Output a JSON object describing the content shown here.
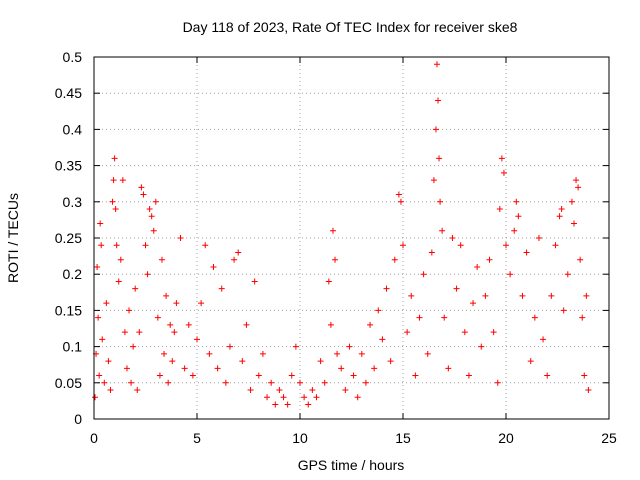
{
  "chart_data": {
    "type": "scatter",
    "title": "Day 118 of 2023, Rate Of TEC Index for receiver ske8",
    "xlabel": "GPS time / hours",
    "ylabel": "ROTI / TECUs",
    "xlim": [
      0,
      25
    ],
    "ylim": [
      0,
      0.5
    ],
    "x_ticks": [
      0,
      5,
      10,
      15,
      20,
      25
    ],
    "x_tick_labels": [
      "0",
      "5",
      "10",
      "15",
      "20",
      "25"
    ],
    "y_ticks": [
      0,
      0.05,
      0.1,
      0.15,
      0.2,
      0.25,
      0.3,
      0.35,
      0.4,
      0.45,
      0.5
    ],
    "y_tick_labels": [
      "0",
      "0.05",
      "0.1",
      "0.15",
      "0.2",
      "0.25",
      "0.3",
      "0.35",
      "0.4",
      "0.45",
      "0.5"
    ],
    "grid": true,
    "marker": "+",
    "marker_color": "#ff0000",
    "series": [
      {
        "name": "ROTI",
        "points": [
          [
            0.05,
            0.03
          ],
          [
            0.1,
            0.09
          ],
          [
            0.15,
            0.21
          ],
          [
            0.2,
            0.14
          ],
          [
            0.25,
            0.06
          ],
          [
            0.3,
            0.27
          ],
          [
            0.35,
            0.24
          ],
          [
            0.4,
            0.11
          ],
          [
            0.5,
            0.05
          ],
          [
            0.6,
            0.16
          ],
          [
            0.7,
            0.08
          ],
          [
            0.8,
            0.04
          ],
          [
            0.9,
            0.3
          ],
          [
            0.95,
            0.33
          ],
          [
            1.0,
            0.36
          ],
          [
            1.05,
            0.29
          ],
          [
            1.1,
            0.24
          ],
          [
            1.2,
            0.19
          ],
          [
            1.3,
            0.22
          ],
          [
            1.4,
            0.33
          ],
          [
            1.5,
            0.12
          ],
          [
            1.6,
            0.07
          ],
          [
            1.7,
            0.15
          ],
          [
            1.8,
            0.05
          ],
          [
            1.9,
            0.1
          ],
          [
            2.0,
            0.18
          ],
          [
            2.1,
            0.04
          ],
          [
            2.2,
            0.12
          ],
          [
            2.3,
            0.32
          ],
          [
            2.4,
            0.31
          ],
          [
            2.5,
            0.24
          ],
          [
            2.6,
            0.2
          ],
          [
            2.7,
            0.29
          ],
          [
            2.8,
            0.28
          ],
          [
            2.9,
            0.26
          ],
          [
            3.0,
            0.3
          ],
          [
            3.1,
            0.14
          ],
          [
            3.2,
            0.06
          ],
          [
            3.3,
            0.22
          ],
          [
            3.4,
            0.09
          ],
          [
            3.5,
            0.17
          ],
          [
            3.6,
            0.05
          ],
          [
            3.7,
            0.13
          ],
          [
            3.8,
            0.08
          ],
          [
            3.9,
            0.12
          ],
          [
            4.0,
            0.16
          ],
          [
            4.2,
            0.25
          ],
          [
            4.4,
            0.07
          ],
          [
            4.6,
            0.13
          ],
          [
            4.8,
            0.06
          ],
          [
            5.0,
            0.11
          ],
          [
            5.2,
            0.16
          ],
          [
            5.4,
            0.24
          ],
          [
            5.6,
            0.09
          ],
          [
            5.8,
            0.21
          ],
          [
            6.0,
            0.07
          ],
          [
            6.2,
            0.18
          ],
          [
            6.4,
            0.05
          ],
          [
            6.6,
            0.1
          ],
          [
            6.8,
            0.22
          ],
          [
            7.0,
            0.23
          ],
          [
            7.2,
            0.08
          ],
          [
            7.4,
            0.13
          ],
          [
            7.6,
            0.04
          ],
          [
            7.8,
            0.19
          ],
          [
            8.0,
            0.06
          ],
          [
            8.2,
            0.09
          ],
          [
            8.4,
            0.03
          ],
          [
            8.6,
            0.05
          ],
          [
            8.8,
            0.02
          ],
          [
            9.0,
            0.04
          ],
          [
            9.2,
            0.03
          ],
          [
            9.4,
            0.02
          ],
          [
            9.6,
            0.06
          ],
          [
            9.8,
            0.1
          ],
          [
            10.0,
            0.05
          ],
          [
            10.2,
            0.03
          ],
          [
            10.4,
            0.02
          ],
          [
            10.6,
            0.04
          ],
          [
            10.8,
            0.03
          ],
          [
            11.0,
            0.08
          ],
          [
            11.2,
            0.05
          ],
          [
            11.4,
            0.19
          ],
          [
            11.5,
            0.13
          ],
          [
            11.6,
            0.26
          ],
          [
            11.7,
            0.22
          ],
          [
            11.8,
            0.09
          ],
          [
            12.0,
            0.07
          ],
          [
            12.2,
            0.04
          ],
          [
            12.4,
            0.1
          ],
          [
            12.6,
            0.06
          ],
          [
            12.8,
            0.03
          ],
          [
            13.0,
            0.09
          ],
          [
            13.2,
            0.05
          ],
          [
            13.4,
            0.13
          ],
          [
            13.6,
            0.07
          ],
          [
            13.8,
            0.15
          ],
          [
            14.0,
            0.11
          ],
          [
            14.2,
            0.18
          ],
          [
            14.4,
            0.08
          ],
          [
            14.6,
            0.22
          ],
          [
            14.8,
            0.31
          ],
          [
            14.9,
            0.3
          ],
          [
            15.0,
            0.24
          ],
          [
            15.2,
            0.12
          ],
          [
            15.4,
            0.17
          ],
          [
            15.6,
            0.06
          ],
          [
            15.8,
            0.14
          ],
          [
            16.0,
            0.2
          ],
          [
            16.2,
            0.09
          ],
          [
            16.4,
            0.23
          ],
          [
            16.5,
            0.33
          ],
          [
            16.6,
            0.4
          ],
          [
            16.65,
            0.49
          ],
          [
            16.7,
            0.44
          ],
          [
            16.75,
            0.36
          ],
          [
            16.8,
            0.3
          ],
          [
            16.9,
            0.26
          ],
          [
            17.0,
            0.14
          ],
          [
            17.2,
            0.07
          ],
          [
            17.4,
            0.25
          ],
          [
            17.6,
            0.18
          ],
          [
            17.8,
            0.24
          ],
          [
            18.0,
            0.12
          ],
          [
            18.2,
            0.06
          ],
          [
            18.4,
            0.16
          ],
          [
            18.6,
            0.21
          ],
          [
            18.8,
            0.1
          ],
          [
            19.0,
            0.17
          ],
          [
            19.2,
            0.22
          ],
          [
            19.4,
            0.12
          ],
          [
            19.6,
            0.05
          ],
          [
            19.7,
            0.29
          ],
          [
            19.8,
            0.36
          ],
          [
            19.9,
            0.34
          ],
          [
            20.0,
            0.24
          ],
          [
            20.2,
            0.2
          ],
          [
            20.4,
            0.26
          ],
          [
            20.5,
            0.3
          ],
          [
            20.6,
            0.28
          ],
          [
            20.8,
            0.17
          ],
          [
            21.0,
            0.23
          ],
          [
            21.2,
            0.08
          ],
          [
            21.4,
            0.14
          ],
          [
            21.6,
            0.25
          ],
          [
            21.8,
            0.11
          ],
          [
            22.0,
            0.06
          ],
          [
            22.2,
            0.17
          ],
          [
            22.4,
            0.24
          ],
          [
            22.6,
            0.28
          ],
          [
            22.7,
            0.29
          ],
          [
            22.8,
            0.15
          ],
          [
            23.0,
            0.2
          ],
          [
            23.2,
            0.3
          ],
          [
            23.3,
            0.27
          ],
          [
            23.4,
            0.33
          ],
          [
            23.5,
            0.32
          ],
          [
            23.6,
            0.22
          ],
          [
            23.7,
            0.14
          ],
          [
            23.8,
            0.06
          ],
          [
            23.9,
            0.17
          ],
          [
            24.0,
            0.04
          ]
        ]
      }
    ]
  }
}
